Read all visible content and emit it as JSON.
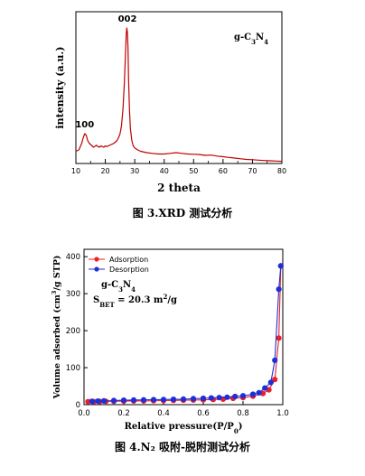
{
  "figure1": {
    "caption": "图 3.XRD 测试分析",
    "chart_data": {
      "type": "line",
      "title": "",
      "xlabel": "2 theta",
      "ylabel": "intensity (a.u.)",
      "xlim": [
        10,
        80
      ],
      "xticks": [
        10,
        20,
        30,
        40,
        50,
        60,
        70,
        80
      ],
      "legend": "g-C3N4",
      "legend_placement": "top-right",
      "grid": false,
      "peak_labels": [
        {
          "text": "100",
          "x": 13.0,
          "y": 0.22
        },
        {
          "text": "002",
          "x": 27.5,
          "y": 1.0
        }
      ],
      "series": [
        {
          "color": "#c00000",
          "x": [
            10,
            11,
            12,
            12.5,
            13,
            13.5,
            14,
            14.5,
            15,
            15.5,
            16,
            17,
            17.5,
            18,
            18.5,
            19,
            19.5,
            20,
            20.5,
            21,
            21.5,
            22,
            22.5,
            23,
            23.5,
            24,
            24.5,
            25,
            25.5,
            26,
            26.5,
            26.8,
            27.1,
            27.3,
            27.5,
            27.7,
            27.9,
            28.2,
            28.5,
            29,
            29.5,
            30,
            31,
            32,
            34,
            36,
            38,
            40,
            42,
            44,
            46,
            48,
            50,
            52,
            54,
            56,
            58,
            60,
            62,
            64,
            66,
            68,
            70,
            72,
            74,
            76,
            78,
            80
          ],
          "y": [
            0.09,
            0.1,
            0.15,
            0.19,
            0.22,
            0.21,
            0.17,
            0.15,
            0.14,
            0.13,
            0.12,
            0.135,
            0.125,
            0.12,
            0.13,
            0.125,
            0.12,
            0.13,
            0.125,
            0.13,
            0.135,
            0.14,
            0.145,
            0.15,
            0.16,
            0.17,
            0.19,
            0.22,
            0.28,
            0.4,
            0.6,
            0.78,
            0.95,
            1.0,
            0.97,
            0.85,
            0.62,
            0.4,
            0.26,
            0.17,
            0.13,
            0.115,
            0.1,
            0.09,
            0.08,
            0.075,
            0.07,
            0.07,
            0.075,
            0.08,
            0.075,
            0.07,
            0.068,
            0.066,
            0.06,
            0.062,
            0.055,
            0.05,
            0.045,
            0.04,
            0.035,
            0.03,
            0.028,
            0.025,
            0.022,
            0.02,
            0.018,
            0.016
          ]
        }
      ]
    }
  },
  "figure2": {
    "caption": "图 4.N₂ 吸附-脱附测试分析",
    "chart_data": {
      "type": "line",
      "title": "",
      "xlabel": "Relative pressure(P/P0)",
      "xlabel_parts": [
        "Relative pressure(P/P",
        "0",
        ")"
      ],
      "ylabel": "Volume adsorbed (cm3/g STP)",
      "ylabel_parts": [
        "Volume adsorbed (cm",
        "3",
        "/g STP)"
      ],
      "xlim": [
        0.0,
        1.0
      ],
      "ylim": [
        0,
        420
      ],
      "xticks": [
        0.0,
        0.2,
        0.4,
        0.6,
        0.8,
        1.0
      ],
      "yticks": [
        0,
        100,
        200,
        300,
        400
      ],
      "legend_placement": "top-left",
      "grid": false,
      "annotation_material": "g-C3N4",
      "annotation_bet": "SBET = 20.3 m2/g",
      "annotation_bet_parts": [
        "S",
        "BET",
        " = 20.3 m",
        "2",
        "/g"
      ],
      "series": [
        {
          "name": "Adsorption",
          "color": "#e8202a",
          "x": [
            0.02,
            0.05,
            0.08,
            0.11,
            0.15,
            0.2,
            0.25,
            0.3,
            0.35,
            0.4,
            0.45,
            0.5,
            0.55,
            0.6,
            0.65,
            0.7,
            0.75,
            0.8,
            0.85,
            0.9,
            0.93,
            0.96,
            0.98,
            0.99
          ],
          "y": [
            8,
            8,
            8.5,
            9,
            9,
            9.5,
            10,
            10,
            10.5,
            11,
            11.5,
            12,
            12.5,
            13,
            14,
            15,
            17,
            19,
            23,
            30,
            40,
            68,
            180,
            375
          ]
        },
        {
          "name": "Desorption",
          "color": "#1f2fd8",
          "x": [
            0.99,
            0.98,
            0.96,
            0.94,
            0.91,
            0.88,
            0.85,
            0.8,
            0.76,
            0.72,
            0.68,
            0.64,
            0.6,
            0.55,
            0.5,
            0.45,
            0.4,
            0.35,
            0.3,
            0.25,
            0.2,
            0.15,
            0.1,
            0.07,
            0.04
          ],
          "y": [
            375,
            312,
            120,
            60,
            45,
            32,
            28,
            24,
            22,
            20,
            19,
            18,
            17,
            16,
            15,
            14.5,
            14,
            13.5,
            13,
            12.5,
            12,
            11,
            10,
            9.5,
            9
          ]
        }
      ]
    }
  }
}
